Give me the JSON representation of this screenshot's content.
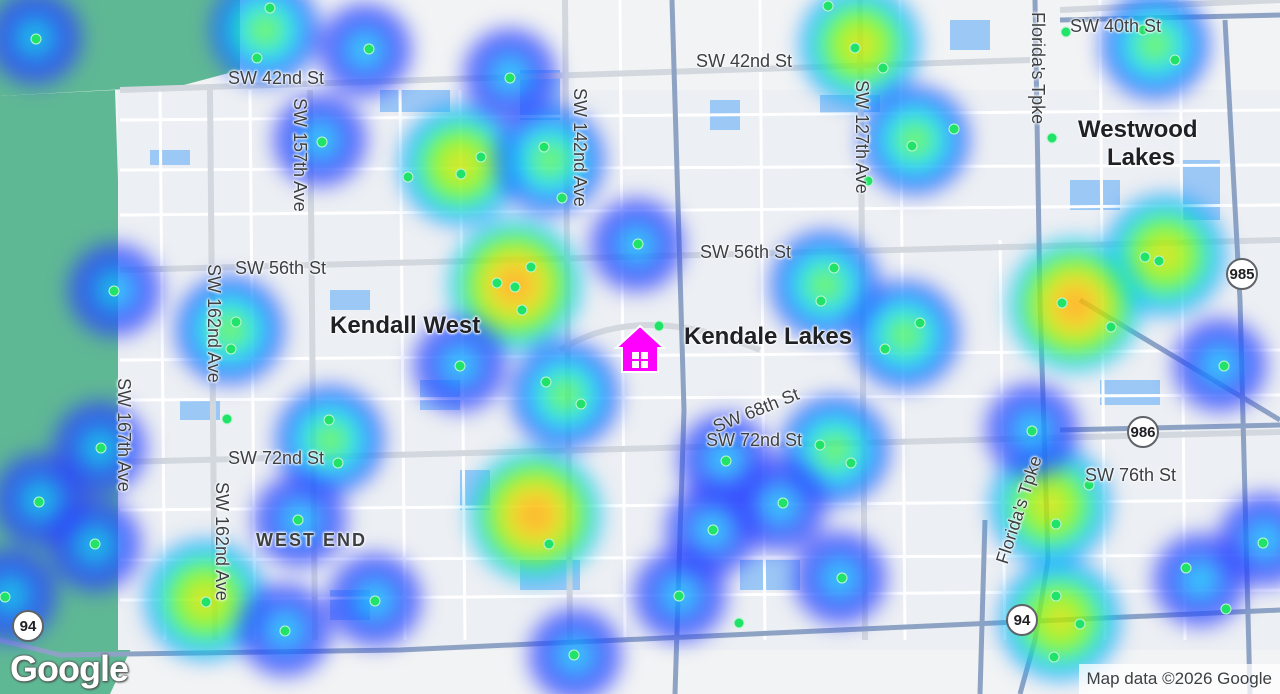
{
  "map": {
    "streets": [
      "SW 42nd St",
      "SW 42nd St",
      "SW 40th St",
      "SW 157th Ave",
      "SW 142nd Ave",
      "SW 127th Ave",
      "Florida's Tpke",
      "SW 56th St",
      "SW 56th St",
      "SW 162nd Ave",
      "SW 162nd Ave",
      "SW 167th Ave",
      "SW 68th St",
      "SW 72nd St",
      "SW 72nd St",
      "SW 76th St",
      "Florida's Tpke"
    ],
    "places": [
      "Kendall West",
      "Kendale Lakes",
      "Westwood",
      "Lakes"
    ],
    "areas": [
      "WEST END"
    ],
    "shields": [
      "985",
      "986",
      "94",
      "94"
    ],
    "logo": "Google",
    "attribution": "Map data ©2026 Google",
    "marker_icon": "home-icon",
    "marker_color": "#ff00ff",
    "heat_colors": [
      "#2b3bff",
      "#00e5ff",
      "#7cfc00",
      "#ffd700",
      "#ff8c00"
    ],
    "point_color": "#22e36a"
  }
}
